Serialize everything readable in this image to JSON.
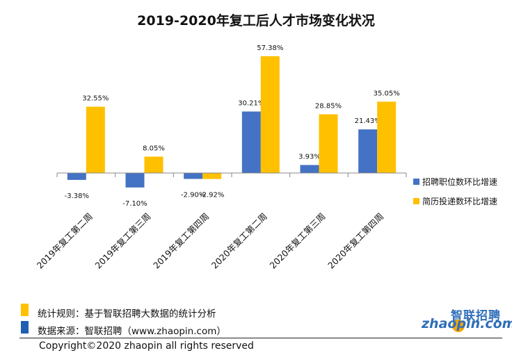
{
  "chart_data": {
    "type": "bar",
    "title": "2019-2020年复工后人才市场变化状况",
    "categories": [
      "2019年复工第二周",
      "2019年复工第三周",
      "2019年复工第四周",
      "2020年复工第二周",
      "2020年复工第三周",
      "2020年复工第四周"
    ],
    "series": [
      {
        "name": "招聘职位数环比增速",
        "color": "#4472c4",
        "values": [
          -3.38,
          -7.1,
          -2.9,
          30.21,
          3.93,
          21.43
        ],
        "labels": [
          "-3.38%",
          "-7.10%",
          "-2.90%",
          "30.21%",
          "3.93%",
          "21.43%"
        ]
      },
      {
        "name": "简历投递数环比增速",
        "color": "#ffc000",
        "values": [
          32.55,
          8.05,
          -2.92,
          57.38,
          28.85,
          35.05
        ],
        "labels": [
          "32.55%",
          "8.05%",
          "-2.92%",
          "57.38%",
          "28.85%",
          "35.05%"
        ]
      }
    ],
    "ylim": [
      -10,
      60
    ],
    "grid": false,
    "legend_position": "right"
  },
  "notes": {
    "rule_text": "统计规则：基于智联招聘大数据的统计分析",
    "rule_color": "#ffc000",
    "source_text": "数据来源：智联招聘（www.zhaopin.com）",
    "source_color": "#1f5fb4"
  },
  "copyright": "Copyright©2020 zhaopin all rights reserved",
  "logo": {
    "cn": "智联招聘",
    "en": "zhaopin.com"
  }
}
